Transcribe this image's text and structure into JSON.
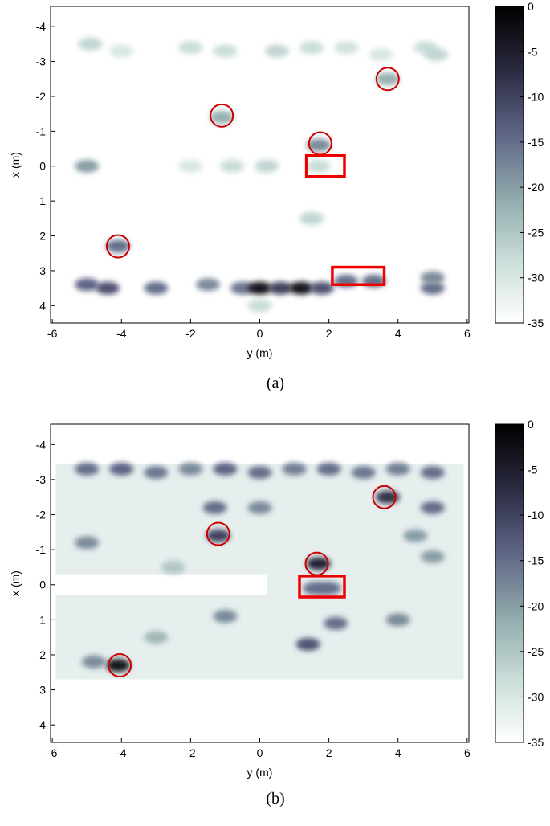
{
  "chart_data": [
    {
      "type": "heatmap",
      "caption": "(a)",
      "xlabel": "y (m)",
      "ylabel": "x (m)",
      "xlim": [
        -6.05,
        6.05
      ],
      "xticks": [
        -6,
        -4,
        -2,
        0,
        2,
        4,
        6
      ],
      "ylim": [
        -4.58,
        4.5
      ],
      "yticks": [
        -4,
        -3,
        -2,
        -1,
        0,
        1,
        2,
        3,
        4
      ],
      "clim": [
        -35,
        0
      ],
      "cticks": [
        0,
        -5,
        -10,
        -15,
        -20,
        -25,
        -30,
        -35
      ],
      "colormap": [
        "#ffffff",
        "#c9ddd9",
        "#8fa8aa",
        "#5e6485",
        "#2a2a40",
        "#000000"
      ],
      "x": [
        -4.9,
        -4,
        -2,
        -1,
        0.5,
        1.5,
        2.5,
        3.5,
        4.8,
        5.1,
        3.7,
        -1.1,
        1.7,
        1.7,
        -5,
        -0.8,
        0.2,
        -2,
        -4.1,
        1.5,
        -5,
        -4.4,
        -3,
        -1.5,
        -0.5,
        0,
        0.6,
        1.2,
        1.8,
        2.5,
        3.3,
        5,
        5,
        0
      ],
      "y": [
        -3.5,
        -3.3,
        -3.4,
        -3.3,
        -3.3,
        -3.4,
        -3.4,
        -3.2,
        -3.4,
        -3.2,
        -2.5,
        -1.4,
        -0.6,
        0,
        0,
        0,
        0,
        0,
        2.3,
        1.5,
        3.4,
        3.5,
        3.5,
        3.4,
        3.5,
        3.5,
        3.5,
        3.5,
        3.5,
        3.3,
        3.3,
        3.5,
        3.2,
        4
      ],
      "values": [
        -27,
        -30,
        -28,
        -28,
        -27,
        -28,
        -29,
        -30,
        -28,
        -27,
        -22,
        -22,
        -18,
        -28,
        -20,
        -28,
        -27,
        -30,
        -15,
        -27,
        -14,
        -12,
        -15,
        -18,
        -16,
        -3,
        -10,
        -3,
        -12,
        -15,
        -15,
        -15,
        -18,
        -28
      ],
      "circles": [
        {
          "x": -1.1,
          "y": -1.45
        },
        {
          "x": 1.75,
          "y": -0.65
        },
        {
          "x": 3.7,
          "y": -2.5
        },
        {
          "x": -4.1,
          "y": 2.3
        }
      ],
      "boxes": [
        {
          "x": [
            1.35,
            2.45
          ],
          "y": [
            -0.3,
            0.3
          ]
        },
        {
          "x": [
            2.1,
            3.6
          ],
          "y": [
            2.9,
            3.4
          ]
        }
      ]
    },
    {
      "type": "heatmap",
      "caption": "(b)",
      "xlabel": "y (m)",
      "ylabel": "x (m)",
      "xlim": [
        -6.05,
        6.05
      ],
      "xticks": [
        -6,
        -4,
        -2,
        0,
        2,
        4,
        6
      ],
      "ylim": [
        -4.58,
        4.5
      ],
      "yticks": [
        -4,
        -3,
        -2,
        -1,
        0,
        1,
        2,
        3,
        4
      ],
      "clim": [
        -35,
        0
      ],
      "cticks": [
        0,
        -5,
        -10,
        -15,
        -20,
        -25,
        -30,
        -35
      ],
      "colormap": [
        "#ffffff",
        "#c9ddd9",
        "#8fa8aa",
        "#5e6485",
        "#2a2a40",
        "#000000"
      ],
      "x": [
        -5,
        -4,
        -3,
        -2,
        -1,
        0,
        1,
        2,
        3,
        4,
        5,
        -1.3,
        0,
        3.7,
        5,
        -1.2,
        -5,
        1.7,
        2,
        1.6,
        -4.1,
        -4.8,
        1.4,
        -1,
        2.2,
        4,
        5,
        4.5,
        -2.5,
        -3
      ],
      "y": [
        -3.3,
        -3.3,
        -3.2,
        -3.3,
        -3.3,
        -3.2,
        -3.3,
        -3.3,
        -3.2,
        -3.3,
        -3.2,
        -2.2,
        -2.2,
        -2.5,
        -2.2,
        -1.4,
        -1.2,
        -0.6,
        0.1,
        0.1,
        2.3,
        2.2,
        1.7,
        0.9,
        1.1,
        1.0,
        -0.8,
        -1.4,
        -0.5,
        1.5
      ],
      "values": [
        -15,
        -14,
        -16,
        -18,
        -14,
        -15,
        -17,
        -15,
        -16,
        -17,
        -15,
        -15,
        -18,
        -8,
        -15,
        -10,
        -18,
        -6,
        -15,
        -15,
        -3,
        -18,
        -12,
        -18,
        -15,
        -18,
        -20,
        -20,
        -25,
        -23
      ],
      "circles": [
        {
          "x": -1.2,
          "y": -1.45
        },
        {
          "x": 1.65,
          "y": -0.6
        },
        {
          "x": 3.6,
          "y": -2.5
        },
        {
          "x": -4.05,
          "y": 2.3
        }
      ],
      "boxes": [
        {
          "x": [
            1.15,
            2.45
          ],
          "y": [
            -0.25,
            0.35
          ]
        }
      ]
    }
  ]
}
